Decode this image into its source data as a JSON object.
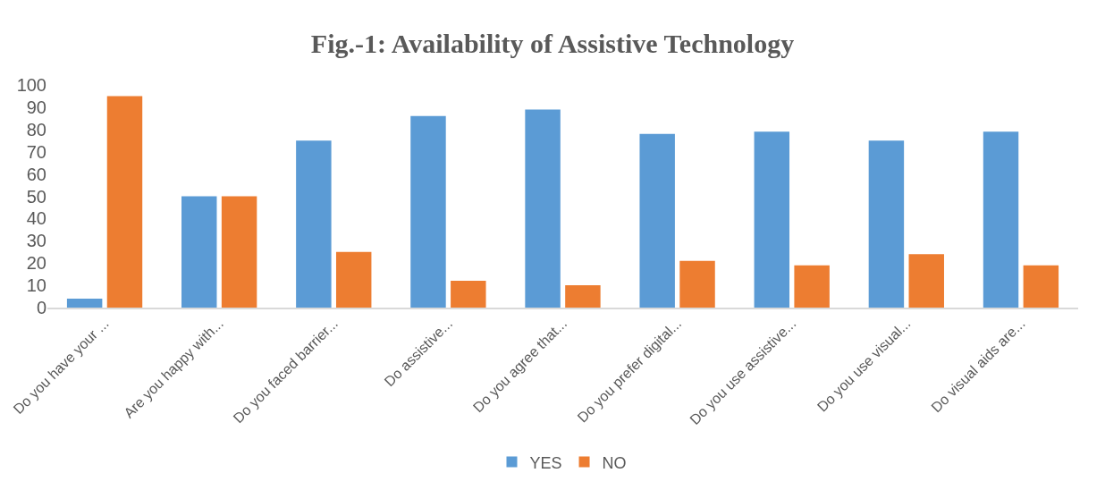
{
  "chart_data": {
    "type": "bar",
    "title": "Fig.-1: Availability of Assistive Technology",
    "categories": [
      "Do you have your ...",
      "Are you happy with...",
      "Do you faced barrier...",
      "Do assistive...",
      "Do you agree that...",
      "Do you prefer digital...",
      "Do you use assistive...",
      "Do you use visual...",
      "Do visual aids are..."
    ],
    "series": [
      {
        "name": "YES",
        "color": "#5b9bd5",
        "values": [
          4,
          50,
          75,
          86,
          89,
          78,
          79,
          75,
          79
        ]
      },
      {
        "name": "NO",
        "color": "#ed7d31",
        "values": [
          95,
          50,
          25,
          12,
          10,
          21,
          19,
          24,
          19
        ]
      }
    ],
    "ylim": [
      0,
      100
    ],
    "yticks": [
      0,
      10,
      20,
      30,
      40,
      50,
      60,
      70,
      80,
      90,
      100
    ],
    "legend": "bottom"
  }
}
